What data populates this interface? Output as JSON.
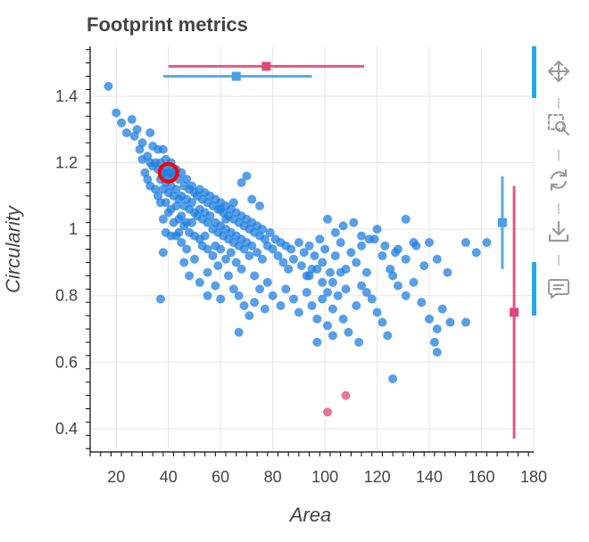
{
  "chart_data": {
    "type": "scatter",
    "title": "Footprint metrics",
    "xlabel": "Area",
    "ylabel": "Circularity",
    "xlim": [
      10,
      180
    ],
    "ylim": [
      0.33,
      1.55
    ],
    "xticks": [
      "20",
      "40",
      "60",
      "80",
      "100",
      "120",
      "140",
      "160",
      "180"
    ],
    "yticks": [
      "0.4",
      "0.6",
      "0.8",
      "1",
      "1.2",
      "1.4"
    ],
    "grid": true,
    "colors": {
      "primary": "#1f7fe0",
      "secondary": "#e0457b",
      "highlight": "#ff0000"
    },
    "series": [
      {
        "color": "#1f7fe0",
        "points": [
          [
            17,
            1.43
          ],
          [
            20,
            1.35
          ],
          [
            22,
            1.32
          ],
          [
            24,
            1.29
          ],
          [
            26,
            1.33
          ],
          [
            27,
            1.28
          ],
          [
            28,
            1.3
          ],
          [
            29,
            1.24
          ],
          [
            30,
            1.26
          ],
          [
            30,
            1.21
          ],
          [
            31,
            1.17
          ],
          [
            32,
            1.22
          ],
          [
            32,
            1.15
          ],
          [
            33,
            1.29
          ],
          [
            33,
            1.2
          ],
          [
            33,
            1.13
          ],
          [
            34,
            1.25
          ],
          [
            34,
            1.19
          ],
          [
            35,
            1.2
          ],
          [
            35,
            1.12
          ],
          [
            36,
            1.24
          ],
          [
            36,
            1.18
          ],
          [
            36,
            1.1
          ],
          [
            37,
            1.2
          ],
          [
            37,
            1.15
          ],
          [
            37,
            1.08
          ],
          [
            38,
            1.24
          ],
          [
            38,
            1.17
          ],
          [
            38,
            1.12
          ],
          [
            38,
            1.03
          ],
          [
            39,
            1.21
          ],
          [
            39,
            1.14
          ],
          [
            39,
            1.08
          ],
          [
            39,
            0.99
          ],
          [
            40,
            1.17
          ],
          [
            40,
            1.11
          ],
          [
            40,
            1.05
          ],
          [
            41,
            1.2
          ],
          [
            41,
            1.13
          ],
          [
            41,
            1.06
          ],
          [
            41,
            0.98
          ],
          [
            42,
            1.16
          ],
          [
            42,
            1.1
          ],
          [
            42,
            1.02
          ],
          [
            43,
            1.18
          ],
          [
            43,
            1.12
          ],
          [
            43,
            1.07
          ],
          [
            43,
            0.98
          ],
          [
            44,
            1.15
          ],
          [
            44,
            1.09
          ],
          [
            44,
            1.03
          ],
          [
            45,
            1.17
          ],
          [
            45,
            1.1
          ],
          [
            45,
            1.04
          ],
          [
            45,
            0.96
          ],
          [
            46,
            1.13
          ],
          [
            46,
            1.07
          ],
          [
            46,
            1.01
          ],
          [
            47,
            1.15
          ],
          [
            47,
            1.09
          ],
          [
            47,
            1.02
          ],
          [
            47,
            0.94
          ],
          [
            48,
            1.12
          ],
          [
            48,
            1.06
          ],
          [
            48,
            0.99
          ],
          [
            49,
            1.13
          ],
          [
            49,
            1.08
          ],
          [
            49,
            1.02
          ],
          [
            50,
            1.11
          ],
          [
            50,
            1.05
          ],
          [
            50,
            0.98
          ],
          [
            50,
            0.91
          ],
          [
            51,
            1.1
          ],
          [
            51,
            1.04
          ],
          [
            52,
            1.12
          ],
          [
            52,
            1.06
          ],
          [
            52,
            0.97
          ],
          [
            53,
            1.09
          ],
          [
            53,
            1.03
          ],
          [
            53,
            0.95
          ],
          [
            54,
            1.11
          ],
          [
            54,
            1.05
          ],
          [
            54,
            0.98
          ],
          [
            55,
            1.08
          ],
          [
            55,
            1.02
          ],
          [
            55,
            0.94
          ],
          [
            55,
            0.87
          ],
          [
            56,
            1.1
          ],
          [
            56,
            1.04
          ],
          [
            57,
            1.07
          ],
          [
            57,
            1.0
          ],
          [
            57,
            0.92
          ],
          [
            58,
            1.09
          ],
          [
            58,
            1.02
          ],
          [
            58,
            0.95
          ],
          [
            59,
            1.06
          ],
          [
            59,
            0.99
          ],
          [
            59,
            0.89
          ],
          [
            60,
            1.08
          ],
          [
            60,
            1.01
          ],
          [
            60,
            0.94
          ],
          [
            61,
            1.05
          ],
          [
            61,
            0.98
          ],
          [
            62,
            1.07
          ],
          [
            62,
            1.0
          ],
          [
            62,
            0.91
          ],
          [
            63,
            1.04
          ],
          [
            63,
            0.97
          ],
          [
            64,
            1.06
          ],
          [
            64,
            0.99
          ],
          [
            64,
            0.93
          ],
          [
            65,
            1.03
          ],
          [
            65,
            0.96
          ],
          [
            66,
            1.05
          ],
          [
            66,
            0.98
          ],
          [
            66,
            0.9
          ],
          [
            67,
            1.02
          ],
          [
            67,
            0.95
          ],
          [
            68,
            1.04
          ],
          [
            68,
            0.97
          ],
          [
            68,
            0.88
          ],
          [
            69,
            1.01
          ],
          [
            69,
            0.94
          ],
          [
            70,
            1.03
          ],
          [
            70,
            0.96
          ],
          [
            71,
            1.0
          ],
          [
            71,
            0.92
          ],
          [
            72,
            1.02
          ],
          [
            72,
            0.95
          ],
          [
            73,
            0.99
          ],
          [
            73,
            0.86
          ],
          [
            74,
            1.01
          ],
          [
            74,
            0.93
          ],
          [
            75,
            0.98
          ],
          [
            76,
            1.0
          ],
          [
            76,
            0.91
          ],
          [
            77,
            0.97
          ],
          [
            78,
            0.95
          ],
          [
            78,
            0.84
          ],
          [
            79,
            0.99
          ],
          [
            80,
            0.94
          ],
          [
            81,
            0.97
          ],
          [
            82,
            0.92
          ],
          [
            83,
            0.96
          ],
          [
            84,
            0.9
          ],
          [
            85,
            0.95
          ],
          [
            86,
            0.88
          ],
          [
            87,
            0.94
          ],
          [
            88,
            0.91
          ],
          [
            90,
            0.96
          ],
          [
            91,
            0.89
          ],
          [
            92,
            0.93
          ],
          [
            93,
            0.86
          ],
          [
            94,
            0.95
          ],
          [
            95,
            0.88
          ],
          [
            96,
            0.92
          ],
          [
            98,
            0.97
          ],
          [
            99,
            0.9
          ],
          [
            100,
            0.94
          ],
          [
            102,
            0.87
          ],
          [
            104,
            0.92
          ],
          [
            106,
            0.96
          ],
          [
            108,
            0.88
          ],
          [
            110,
            0.93
          ],
          [
            112,
            0.9
          ],
          [
            114,
            0.95
          ],
          [
            116,
            0.87
          ],
          [
            119,
            0.97
          ],
          [
            122,
            0.92
          ],
          [
            125,
            0.88
          ],
          [
            128,
            0.94
          ],
          [
            131,
            0.91
          ],
          [
            134,
            0.96
          ],
          [
            138,
            0.89
          ],
          [
            60,
            1.06
          ],
          [
            62,
            1.03
          ],
          [
            65,
            1.08
          ],
          [
            68,
            1.14
          ],
          [
            70,
            1.16
          ],
          [
            72,
            1.09
          ],
          [
            75,
            1.07
          ],
          [
            44,
            0.99
          ],
          [
            46,
            0.9
          ],
          [
            48,
            0.86
          ],
          [
            52,
            0.84
          ],
          [
            55,
            0.8
          ],
          [
            58,
            0.83
          ],
          [
            60,
            0.79
          ],
          [
            63,
            0.86
          ],
          [
            65,
            0.82
          ],
          [
            67,
            0.8
          ],
          [
            69,
            0.77
          ],
          [
            71,
            0.74
          ],
          [
            73,
            0.78
          ],
          [
            75,
            0.82
          ],
          [
            77,
            0.76
          ],
          [
            80,
            0.8
          ],
          [
            83,
            0.77
          ],
          [
            85,
            0.82
          ],
          [
            88,
            0.79
          ],
          [
            90,
            0.75
          ],
          [
            93,
            0.81
          ],
          [
            95,
            0.77
          ],
          [
            97,
            0.73
          ],
          [
            99,
            0.79
          ],
          [
            101,
            0.71
          ],
          [
            103,
            0.76
          ],
          [
            105,
            0.8
          ],
          [
            107,
            0.73
          ],
          [
            109,
            0.69
          ],
          [
            112,
            0.77
          ],
          [
            114,
            0.83
          ],
          [
            116,
            0.81
          ],
          [
            118,
            0.79
          ],
          [
            120,
            0.75
          ],
          [
            122,
            0.72
          ],
          [
            124,
            0.68
          ],
          [
            126,
            0.86
          ],
          [
            128,
            0.83
          ],
          [
            131,
            0.8
          ],
          [
            134,
            0.84
          ],
          [
            137,
            0.78
          ],
          [
            140,
            0.73
          ],
          [
            143,
            0.7
          ],
          [
            145,
            0.76
          ],
          [
            148,
            0.72
          ],
          [
            101,
            1.03
          ],
          [
            104,
            0.99
          ],
          [
            107,
            1.01
          ],
          [
            111,
            1.02
          ],
          [
            114,
            0.98
          ],
          [
            117,
            0.97
          ],
          [
            120,
            1.0
          ],
          [
            123,
            0.95
          ],
          [
            127,
            0.93
          ],
          [
            131,
            1.03
          ],
          [
            135,
            0.95
          ],
          [
            140,
            0.96
          ],
          [
            143,
            0.91
          ],
          [
            147,
            0.87
          ],
          [
            154,
            0.96
          ],
          [
            158,
            0.93
          ],
          [
            162,
            0.96
          ],
          [
            37,
            0.79
          ],
          [
            38,
            0.93
          ],
          [
            67,
            0.69
          ],
          [
            97,
            0.66
          ],
          [
            103,
            0.68
          ],
          [
            113,
            0.66
          ],
          [
            126,
            0.55
          ],
          [
            142,
            0.66
          ],
          [
            143,
            0.63
          ],
          [
            154,
            0.72
          ],
          [
            94,
            0.86
          ],
          [
            97,
            0.88
          ],
          [
            99,
            0.84
          ],
          [
            101,
            0.81
          ],
          [
            103,
            0.84
          ],
          [
            106,
            0.87
          ],
          [
            108,
            0.82
          ]
        ]
      },
      {
        "color": "#e0457b",
        "points": [
          [
            101,
            0.45
          ],
          [
            108,
            0.5
          ]
        ]
      }
    ],
    "highlight_point": [
      40,
      1.17
    ],
    "errorbars_horizontal": [
      {
        "color": "#e0457b",
        "center": [
          77.5,
          1.49
        ],
        "range": [
          40,
          115
        ]
      },
      {
        "color": "#4a9ee6",
        "center": [
          66,
          1.46
        ],
        "range": [
          38,
          95
        ]
      }
    ],
    "errorbars_vertical": [
      {
        "color": "#4a9ee6",
        "center": [
          168,
          1.02
        ],
        "range": [
          0.88,
          1.16
        ]
      },
      {
        "color": "#e0457b",
        "center": [
          172.5,
          0.75
        ],
        "range": [
          0.37,
          1.13
        ]
      }
    ]
  },
  "toolbar": {
    "tools": [
      "pan-icon",
      "box-zoom-icon",
      "reset-icon",
      "save-icon",
      "hover-icon"
    ]
  }
}
